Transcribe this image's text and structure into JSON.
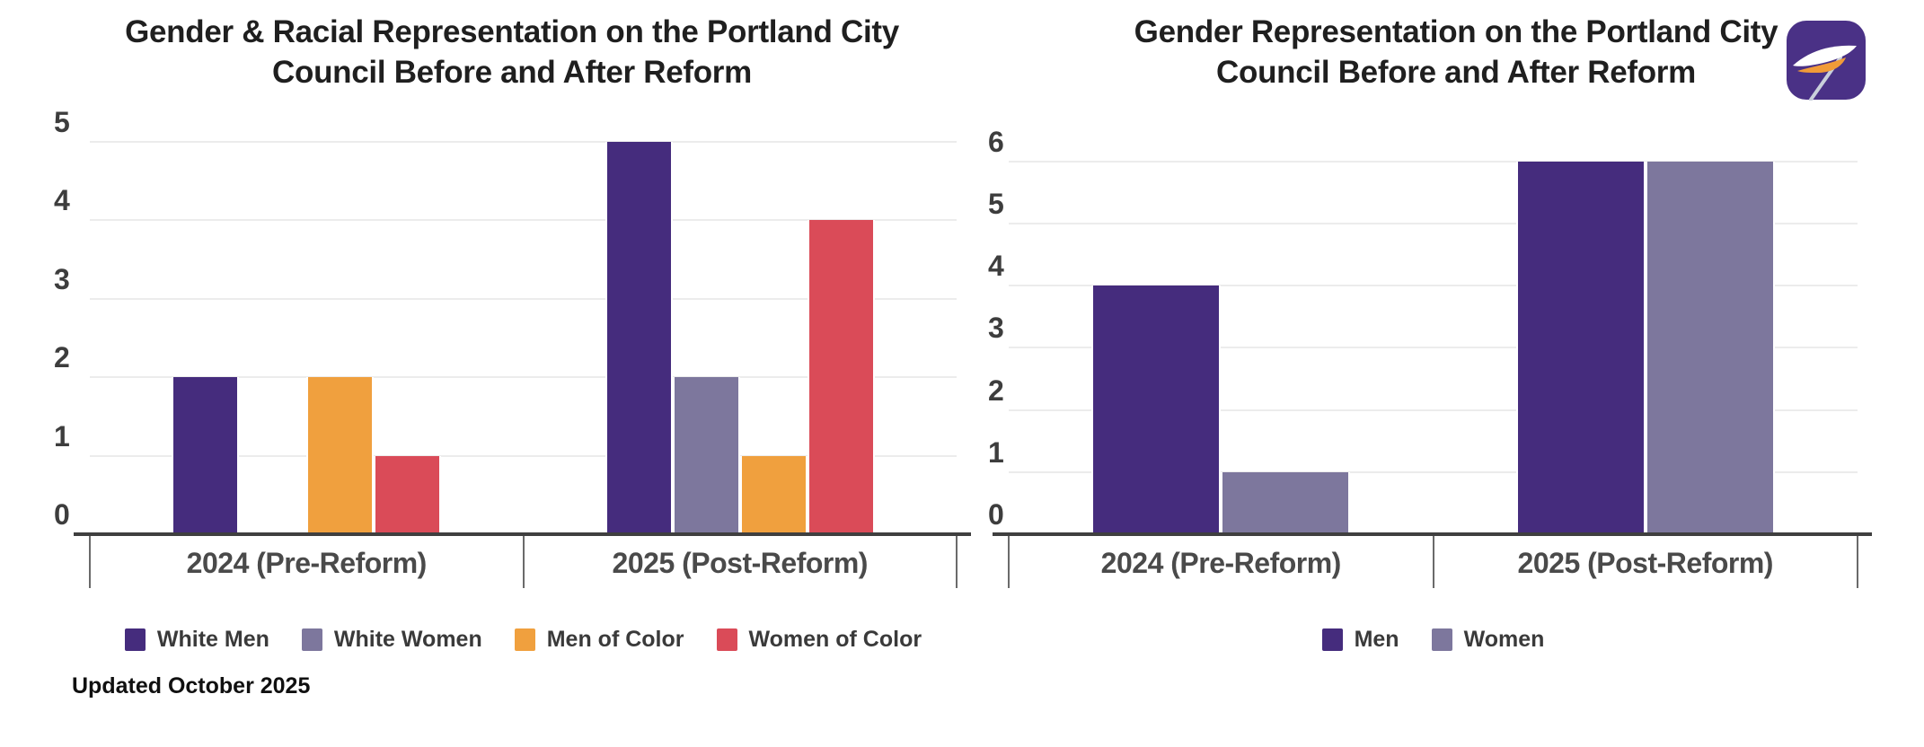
{
  "page": {
    "background": "#ffffff"
  },
  "footer": {
    "updated_label": "Updated October 2025"
  },
  "logo": {
    "name": "flag-swoosh-logo",
    "background_color": "#4a3186",
    "swoosh_top_color": "#ffffff",
    "swoosh_bottom_color": "#f19b38",
    "pole_color": "#c9cfdb"
  },
  "axis_style": {
    "gridline_color": "#ececec",
    "axis_line_color": "#3f3f3f",
    "tick_color": "#6a6a6a",
    "ylabel_color": "#3d3d3d",
    "category_label_color": "#4a4a4a"
  },
  "chart_data": [
    {
      "type": "bar",
      "title": "Gender & Racial Representation on the Portland City Council Before and After Reform",
      "categories": [
        "2024 (Pre-Reform)",
        "2025 (Post-Reform)"
      ],
      "series": [
        {
          "name": "White Men",
          "color": "#452c7d",
          "values": [
            2,
            5
          ]
        },
        {
          "name": "White Women",
          "color": "#7d779d",
          "values": [
            0,
            2
          ]
        },
        {
          "name": "Men of Color",
          "color": "#f0a03e",
          "values": [
            2,
            1
          ]
        },
        {
          "name": "Women of Color",
          "color": "#da4b58",
          "values": [
            1,
            4
          ]
        }
      ],
      "xlabel": "",
      "ylabel": "",
      "ylim": [
        0,
        5
      ],
      "ytick_step": 1,
      "grid": true,
      "legend_position": "bottom"
    },
    {
      "type": "bar",
      "title": "Gender Representation on the Portland City Council Before and After Reform",
      "categories": [
        "2024 (Pre-Reform)",
        "2025 (Post-Reform)"
      ],
      "series": [
        {
          "name": "Men",
          "color": "#452c7d",
          "values": [
            4,
            6
          ]
        },
        {
          "name": "Women",
          "color": "#7d779d",
          "values": [
            1,
            6
          ]
        }
      ],
      "xlabel": "",
      "ylabel": "",
      "ylim": [
        0,
        6
      ],
      "ytick_step": 1,
      "grid": true,
      "legend_position": "bottom"
    }
  ]
}
